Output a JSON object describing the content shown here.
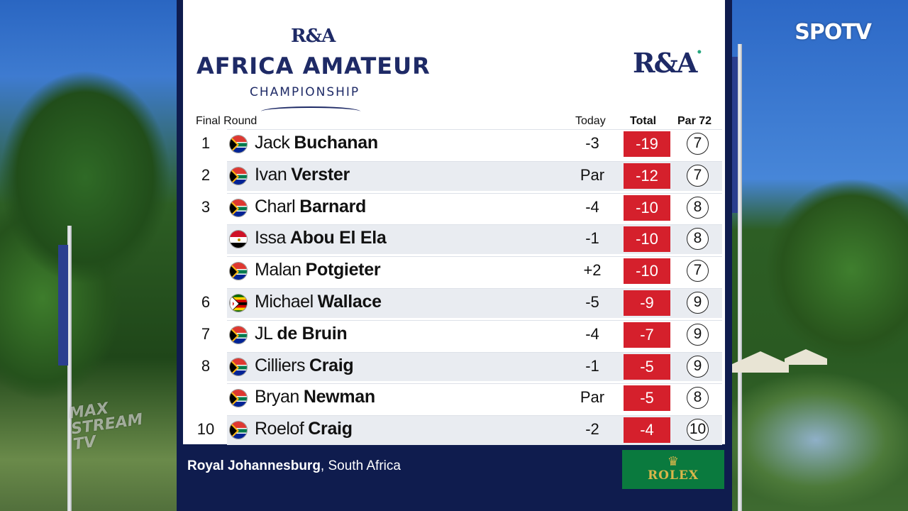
{
  "broadcaster": "SPOTV",
  "watermark": "MAX STREAM TV",
  "event": {
    "ra_small": "R&A",
    "title": "AFRICA AMATEUR",
    "subtitle": "CHAMPIONSHIP",
    "ra_big": "R&A"
  },
  "headers": {
    "round": "Final Round",
    "today": "Today",
    "total": "Total",
    "par": "Par 72"
  },
  "leaderboard": [
    {
      "pos": "1",
      "flag": "south-africa",
      "first": "Jack",
      "last": "Buchanan",
      "today": "-3",
      "total": "-19",
      "hole": "7"
    },
    {
      "pos": "2",
      "flag": "south-africa",
      "first": "Ivan",
      "last": "Verster",
      "today": "Par",
      "total": "-12",
      "hole": "7"
    },
    {
      "pos": "3",
      "flag": "south-africa",
      "first": "Charl",
      "last": "Barnard",
      "today": "-4",
      "total": "-10",
      "hole": "8"
    },
    {
      "pos": "",
      "flag": "egypt",
      "first": "Issa",
      "last": "Abou El Ela",
      "today": "-1",
      "total": "-10",
      "hole": "8"
    },
    {
      "pos": "",
      "flag": "south-africa",
      "first": "Malan",
      "last": "Potgieter",
      "today": "+2",
      "total": "-10",
      "hole": "7"
    },
    {
      "pos": "6",
      "flag": "zimbabwe",
      "first": "Michael",
      "last": "Wallace",
      "today": "-5",
      "total": "-9",
      "hole": "9"
    },
    {
      "pos": "7",
      "flag": "south-africa",
      "first": "JL",
      "last": "de Bruin",
      "today": "-4",
      "total": "-7",
      "hole": "9"
    },
    {
      "pos": "8",
      "flag": "south-africa",
      "first": "Cilliers",
      "last": "Craig",
      "today": "-1",
      "total": "-5",
      "hole": "9"
    },
    {
      "pos": "",
      "flag": "south-africa",
      "first": "Bryan",
      "last": "Newman",
      "today": "Par",
      "total": "-5",
      "hole": "8"
    },
    {
      "pos": "10",
      "flag": "south-africa",
      "first": "Roelof",
      "last": "Craig",
      "today": "-2",
      "total": "-4",
      "hole": "10"
    }
  ],
  "footer": {
    "venue": "Royal Johannesburg",
    "country": ", South Africa",
    "sponsor": "ROLEX"
  },
  "colors": {
    "board_navy": "#0f1c4e",
    "title_navy": "#1e2a66",
    "total_red": "#d5202c",
    "rolex_green": "#0a7a3e"
  }
}
